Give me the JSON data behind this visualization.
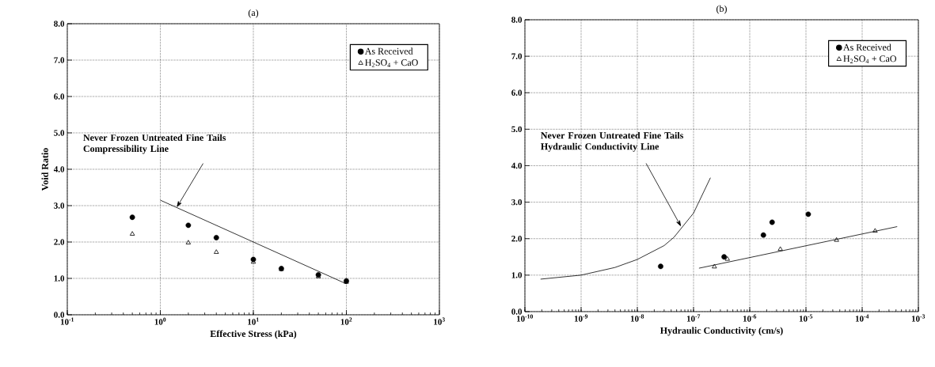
{
  "chart_data": [
    {
      "type": "scatter",
      "title": "(a)",
      "xlabel": "Effective Stress (kPa)",
      "ylabel": "Void Ratio",
      "log": "x",
      "grid": true,
      "legend": "top right",
      "xlim": [
        0.1,
        1000
      ],
      "ylim": [
        0,
        8
      ],
      "xticks": [
        {
          "value": 0.1,
          "label": "10$^{-1}$"
        },
        {
          "value": 1,
          "label": "10$^{0}$"
        },
        {
          "value": 10,
          "label": "10$^{1}$"
        },
        {
          "value": 100,
          "label": "10$^{2}$"
        },
        {
          "value": 1000,
          "label": "10$^{3}$"
        }
      ],
      "yticks": [
        {
          "value": 0,
          "label": "0.0"
        },
        {
          "value": 1,
          "label": "1.0"
        },
        {
          "value": 2,
          "label": "2.0"
        },
        {
          "value": 3,
          "label": "3.0"
        },
        {
          "value": 4,
          "label": "4.0"
        },
        {
          "value": 5,
          "label": "5.0"
        },
        {
          "value": 6,
          "label": "6.0"
        },
        {
          "value": 7,
          "label": "7.0"
        },
        {
          "value": 8,
          "label": "8.0"
        }
      ],
      "series": [
        {
          "name": "As Received",
          "color": "#000000",
          "marker": "circle",
          "x": [
            0.5,
            2,
            4,
            10,
            20,
            50,
            100
          ],
          "values": [
            2.68,
            2.46,
            2.12,
            1.52,
            1.27,
            1.1,
            0.93
          ]
        },
        {
          "name": "H$_{2}$SO$_{4}$ + CaO",
          "color": "#000000",
          "marker": "triangle",
          "x": [
            0.5,
            2,
            4,
            10,
            20,
            50,
            100
          ],
          "values": [
            2.22,
            1.98,
            1.72,
            1.45,
            1.25,
            1.05,
            0.9
          ]
        },
        {
          "type": "line",
          "color": "#000000",
          "marker": "none",
          "x": [
            1,
            100
          ],
          "values": [
            3.15,
            0.85
          ]
        }
      ],
      "annotations": [
        {
          "text": "Never Frozen Untreated Fine Tails Compressibility Line",
          "x": 1.5,
          "y": 2.95
        }
      ]
    },
    {
      "type": "scatter",
      "title": "(b)",
      "xlabel": "Hydraulic Conductivity (cm/s)",
      "log": "x",
      "grid": true,
      "legend": "top right",
      "xlim": [
        1e-10,
        0.001
      ],
      "ylim": [
        0,
        8
      ],
      "xticks": [
        {
          "value": 1e-10,
          "label": "10$^{-10}$"
        },
        {
          "value": 1e-09,
          "label": "10$^{-9}$"
        },
        {
          "value": 1e-08,
          "label": "10$^{-8}$"
        },
        {
          "value": 1e-07,
          "label": "10$^{-7}$"
        },
        {
          "value": 1e-06,
          "label": "10$^{-6}$"
        },
        {
          "value": 1e-05,
          "label": "10$^{-5}$"
        },
        {
          "value": 0.0001,
          "label": "10$^{-4}$"
        },
        {
          "value": 0.001,
          "label": "10$^{-3}$"
        }
      ],
      "yticks": [
        {
          "value": 0,
          "label": "0.0"
        },
        {
          "value": 1,
          "label": "1.0"
        },
        {
          "value": 2,
          "label": "2.0"
        },
        {
          "value": 3,
          "label": "3.0"
        },
        {
          "value": 4,
          "label": "4.0"
        },
        {
          "value": 5,
          "label": "5.0"
        },
        {
          "value": 6,
          "label": "6.0"
        },
        {
          "value": 7,
          "label": "7.0"
        },
        {
          "value": 8,
          "label": "8.0"
        }
      ],
      "series": [
        {
          "name": "As Received",
          "color": "#000000",
          "marker": "circle",
          "x": [
            2.6e-08,
            3.5e-07,
            1.75e-06,
            2.5e-06,
            1.1e-05
          ],
          "values": [
            1.24,
            1.5,
            2.1,
            2.45,
            2.67
          ]
        },
        {
          "name": "H$_{2}$SO$_{4}$ + CaO",
          "color": "#000000",
          "marker": "triangle",
          "x": [
            2.35e-07,
            4e-07,
            3.5e-06,
            3.5e-05,
            0.00017
          ],
          "values": [
            1.23,
            1.44,
            1.71,
            1.96,
            2.21
          ]
        },
        {
          "type": "line",
          "color": "#000000",
          "marker": "none",
          "x": [
            1.9e-10,
            1e-09,
            4e-09,
            1e-08,
            3e-08,
            4.5e-08,
            1e-07,
            2e-07
          ],
          "values": [
            0.89,
            1.0,
            1.21,
            1.43,
            1.81,
            2.04,
            2.7,
            3.67
          ]
        },
        {
          "type": "line",
          "color": "#000000",
          "marker": "none",
          "x": [
            1.25e-07,
            0.00042
          ],
          "values": [
            1.19,
            2.33
          ]
        }
      ],
      "annotations": [
        {
          "text": "Never Frozen Untreated Fine Tails Hydraulic Conductivity Line",
          "x": 6e-08,
          "y": 2.33
        }
      ]
    }
  ]
}
